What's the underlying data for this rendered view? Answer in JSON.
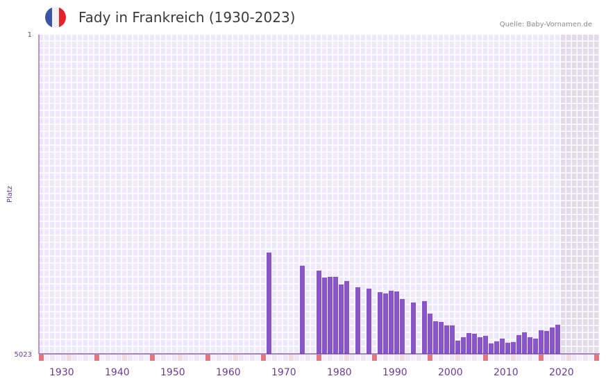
{
  "header": {
    "title": "Fady in Frankreich (1930-2023)",
    "source": "Quelle: Baby-Vornamen.de",
    "flag_colors": [
      "#3a55a4",
      "#f1f1f1",
      "#e8202a"
    ]
  },
  "chart_data": {
    "type": "bar",
    "title": "Fady in Frankreich (1930-2023)",
    "xlabel": "",
    "ylabel": "Platz",
    "xlim": [
      1928,
      2028
    ],
    "ylim": [
      5023,
      1
    ],
    "y_ticks": [
      "1",
      "5023"
    ],
    "x_ticks": [
      "1930",
      "1940",
      "1950",
      "1960",
      "1970",
      "1980",
      "1990",
      "2000",
      "2010",
      "2020"
    ],
    "x": [
      1969,
      1975,
      1978,
      1979,
      1980,
      1981,
      1982,
      1983,
      1985,
      1987,
      1989,
      1990,
      1991,
      1992,
      1993,
      1995,
      1997,
      1998,
      1999,
      2000,
      2001,
      2002,
      2003,
      2004,
      2005,
      2006,
      2007,
      2008,
      2009,
      2010,
      2011,
      2012,
      2013,
      2014,
      2015,
      2016,
      2017,
      2018,
      2019,
      2020,
      2021
    ],
    "values": [
      3429,
      3636,
      3713,
      3822,
      3811,
      3811,
      3931,
      3877,
      3975,
      3997,
      4052,
      4073,
      4030,
      4041,
      4160,
      4215,
      4193,
      4390,
      4510,
      4521,
      4575,
      4575,
      4815,
      4761,
      4695,
      4706,
      4761,
      4739,
      4859,
      4826,
      4783,
      4848,
      4837,
      4728,
      4684,
      4761,
      4783,
      4652,
      4663,
      4608,
      4565
    ],
    "shaded_from": 2022,
    "colors": {
      "bar": "#8a55c6",
      "axis": "#6a3aa0",
      "grid_bg": "#ede8f8",
      "marker": "#e5747c",
      "marker_light": "#f5d8e0",
      "shade": "#e2dcea"
    }
  }
}
